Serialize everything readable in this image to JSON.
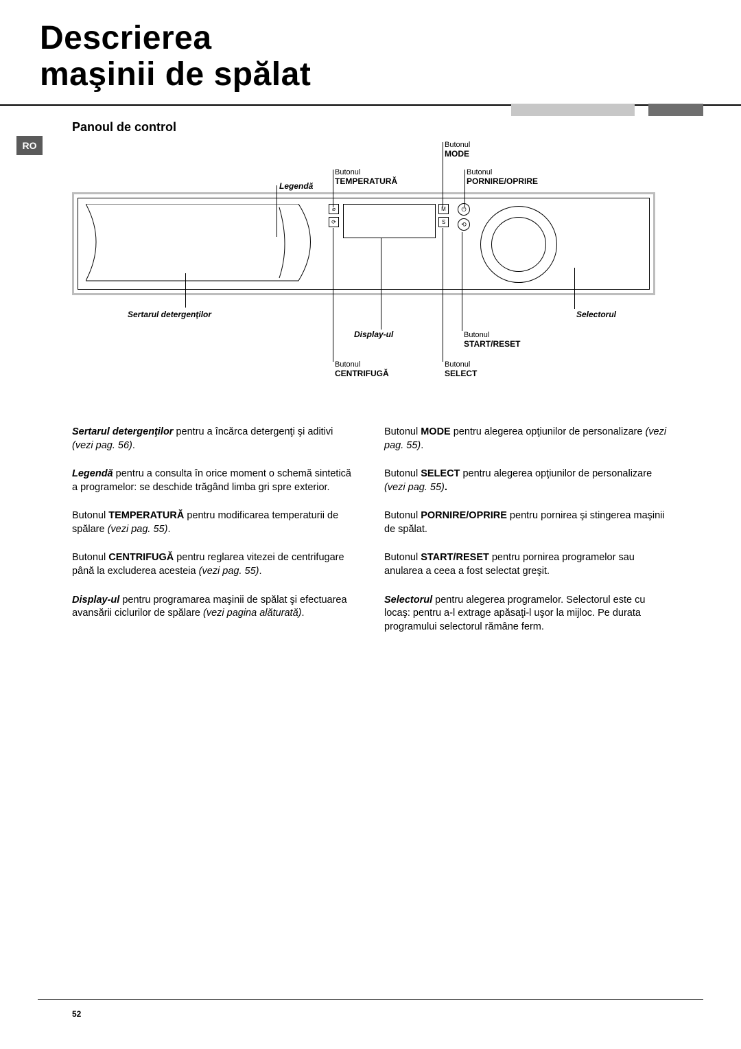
{
  "title_line1": "Descrierea",
  "title_line2": "maşinii de spălat",
  "lang_code": "RO",
  "subheading": "Panoul de control",
  "labels": {
    "butonul_prefix": "Butonul",
    "mode": "MODE",
    "temperatura": "TEMPERATURĂ",
    "pornire": "PORNIRE/OPRIRE",
    "legenda": "Legendă",
    "sertarul": "Sertarul detergenţilor",
    "selectorul": "Selectorul",
    "display": "Display-ul",
    "start_reset": "START/RESET",
    "centrifuga": "CENTRIFUGĂ",
    "select": "SELECT"
  },
  "body": {
    "left": [
      {
        "lead_bi": "Sertarul detergenţilor",
        "text": " pentru a încărca detergenţi şi aditivi ",
        "tail_i": "(vezi pag. 56)",
        "after": "."
      },
      {
        "lead_bi": "Legendă",
        "text": " pentru a consulta în orice moment o schemă sintetică a programelor: se deschide trăgând limba gri spre exterior."
      },
      {
        "lead": "Butonul ",
        "bold": "TEMPERATURĂ",
        "text": " pentru modificarea temperaturii de spălare ",
        "tail_i": "(vezi pag. 55)",
        "after": "."
      },
      {
        "lead": "Butonul ",
        "bold": "CENTRIFUGĂ",
        "text": " pentru reglarea vitezei de centrifugare până la excluderea acesteia ",
        "tail_i": "(vezi pag. 55)",
        "after": "."
      },
      {
        "lead_bi": "Display-ul",
        "text": " pentru programarea maşinii de spălat şi efectuarea avansării ciclurilor de spălare ",
        "tail_i": "(vezi pagina alăturată)",
        "after": "."
      }
    ],
    "right": [
      {
        "lead": "Butonul ",
        "bold": "MODE",
        "text": " pentru alegerea opţiunilor de personalizare ",
        "tail_i": "(vezi pag. 55)",
        "after": "."
      },
      {
        "lead": "Butonul ",
        "bold": "SELECT",
        "text": " pentru alegerea opţiunilor de personalizare ",
        "tail_i": "(vezi pag. 55)",
        "after_b": "."
      },
      {
        "lead": "Butonul ",
        "bold": "PORNIRE/OPRIRE",
        "text": " pentru pornirea şi stingerea maşinii de spălat."
      },
      {
        "lead": "Butonul ",
        "bold": "START/RESET",
        "text": " pentru pornirea programelor sau anularea a ceea a fost selectat greşit."
      },
      {
        "lead_bi": "Selectorul",
        "text": " pentru alegerea programelor. Selectorul este cu locaş: pentru a-l extrage apăsaţi-l uşor la mijloc. Pe durata programului selectorul rămâne ferm."
      }
    ]
  },
  "page_number": "52",
  "colors": {
    "panel_border": "#bdbdbd",
    "grey_light": "#c7c7c7",
    "grey_dark": "#6e6e6e",
    "lang_bg": "#5a5a5a"
  }
}
